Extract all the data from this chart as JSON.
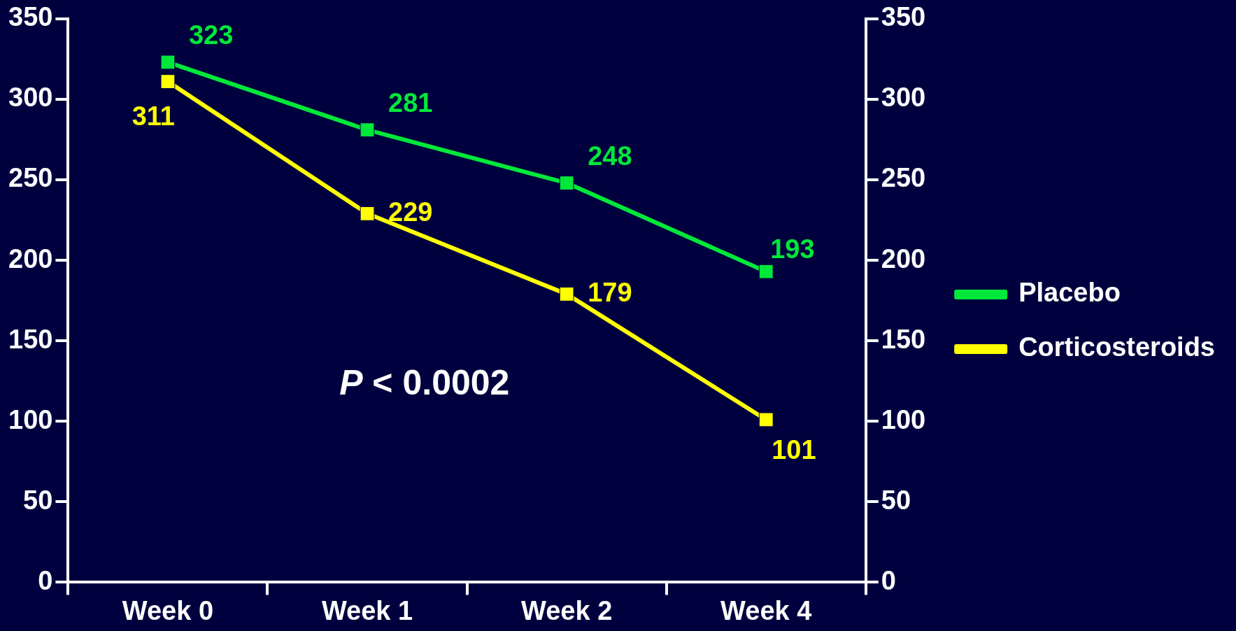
{
  "chart_data": {
    "type": "line",
    "categories": [
      "Week 0",
      "Week 1",
      "Week 2",
      "Week 4"
    ],
    "series": [
      {
        "name": "Placebo",
        "color": "#00e83a",
        "values": [
          323,
          281,
          248,
          193
        ]
      },
      {
        "name": "Corticosteroids",
        "color": "#ffff00",
        "values": [
          311,
          229,
          179,
          101
        ]
      }
    ],
    "ylim": [
      0,
      350
    ],
    "yticks": [
      0,
      50,
      100,
      150,
      200,
      250,
      300,
      350
    ],
    "y2lim": [
      0,
      350
    ],
    "y2ticks": [
      0,
      50,
      100,
      150,
      200,
      250,
      300,
      350
    ],
    "annotations": [
      "P < 0.0002"
    ],
    "data_labels": true,
    "marker": "square",
    "line_style": "solid",
    "grid": false,
    "legend": "right"
  }
}
